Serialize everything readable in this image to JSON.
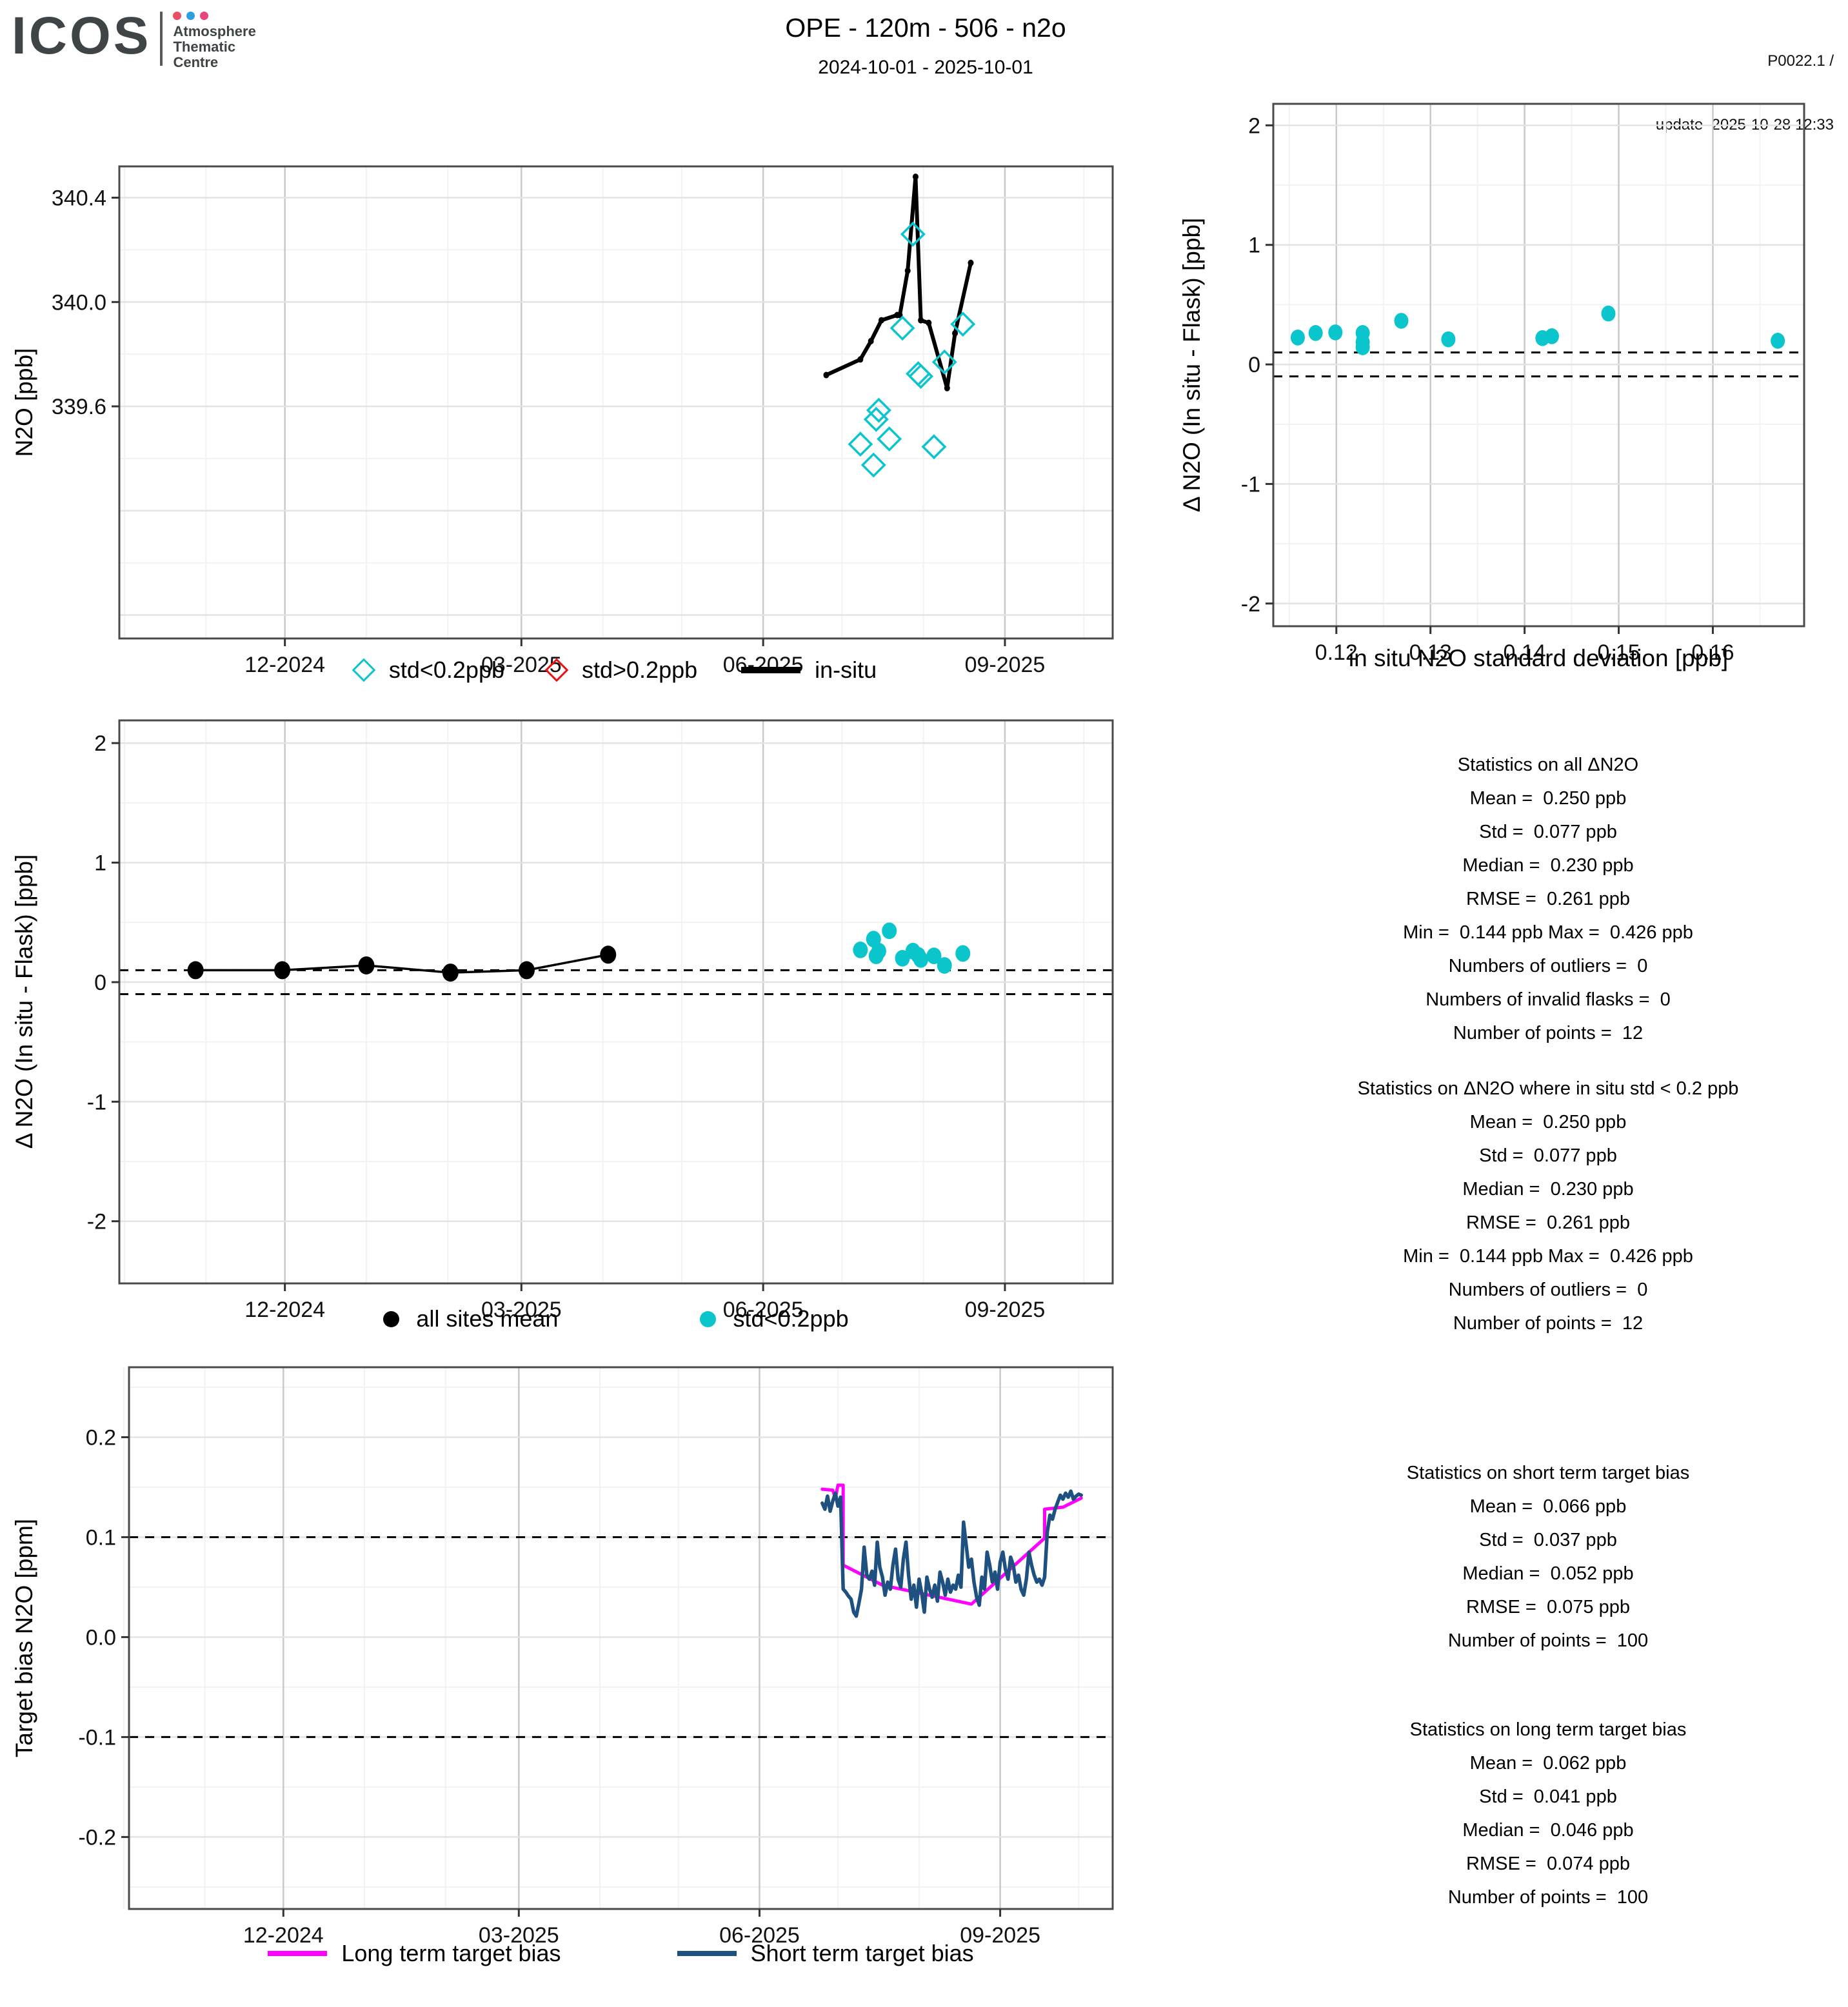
{
  "header": {
    "logo": {
      "brand": "ICOS",
      "dept_lines": [
        "Atmosphere",
        "Thematic",
        "Centre"
      ],
      "dot_colors": [
        "#ea4f63",
        "#2d9fdb",
        "#e9447e"
      ]
    },
    "title": "OPE - 120m - 506 - n2o",
    "subtitle": "2024-10-01 - 2025-10-01",
    "meta_line1": "P0022.1 /",
    "meta_line2": "update  2025-10-28 12:33"
  },
  "colors": {
    "cyan": "#0bc5cd",
    "red": "#ed1111",
    "black": "#000000",
    "magenta": "#ff00ff",
    "short_blue": "#1e5180",
    "frame": "#4a4a4a",
    "grid_major_v": "#c9c9c9",
    "grid_major_h": "#e3e3e3",
    "grid_minor": "#f2f2f2"
  },
  "chart_data": [
    {
      "id": "n2o_timeseries",
      "type": "line",
      "ylabel": "N2O [ppb]",
      "xlabel": "",
      "ylim": [
        338.71,
        340.52
      ],
      "x_ticks": [
        {
          "d": "2024-12-01",
          "label": "12-2024"
        },
        {
          "d": "2025-03-01",
          "label": "03-2025"
        },
        {
          "d": "2025-06-01",
          "label": "06-2025"
        },
        {
          "d": "2025-09-01",
          "label": "09-2025"
        }
      ],
      "x_minor": [
        "2024-10-01",
        "2024-11-01",
        "2025-01-01",
        "2025-02-01",
        "2025-04-01",
        "2025-05-01",
        "2025-07-01",
        "2025-08-01",
        "2025-10-01"
      ],
      "y_ticks": [
        {
          "v": 339.6,
          "label": "339.6"
        },
        {
          "v": 340.0,
          "label": "340.0"
        },
        {
          "v": 340.4,
          "label": "340.4"
        }
      ],
      "y_grid_major": [
        338.8,
        339.2,
        339.6,
        340.0,
        340.4
      ],
      "y_grid_minor": [
        339.0,
        339.4,
        339.8,
        340.2
      ],
      "dashed": [],
      "series": {
        "insitu": [
          [
            "2025-06-25",
            339.72
          ],
          [
            "2025-07-08",
            339.78
          ],
          [
            "2025-07-12",
            339.85
          ],
          [
            "2025-07-16",
            339.93
          ],
          [
            "2025-07-22",
            339.95
          ],
          [
            "2025-07-23",
            339.95
          ],
          [
            "2025-07-26",
            340.12
          ],
          [
            "2025-07-29",
            340.48
          ],
          [
            "2025-07-31",
            339.93
          ],
          [
            "2025-08-03",
            339.92
          ],
          [
            "2025-08-10",
            339.67
          ],
          [
            "2025-08-13",
            339.88
          ],
          [
            "2025-08-19",
            340.15
          ]
        ],
        "flask_std_ok": [
          [
            "2025-07-08",
            339.455
          ],
          [
            "2025-07-13",
            339.375
          ],
          [
            "2025-07-14",
            339.55
          ],
          [
            "2025-07-15",
            339.585
          ],
          [
            "2025-07-19",
            339.475
          ],
          [
            "2025-07-24",
            339.9
          ],
          [
            "2025-07-28",
            340.26
          ],
          [
            "2025-07-30",
            339.725
          ],
          [
            "2025-07-31",
            339.715
          ],
          [
            "2025-08-05",
            339.445
          ],
          [
            "2025-08-09",
            339.77
          ],
          [
            "2025-08-16",
            339.915
          ]
        ],
        "flask_std_bad": []
      },
      "legend": [
        {
          "label": "std<0.2ppb",
          "marker": "diamond",
          "color_key": "cyan"
        },
        {
          "label": "std>0.2ppb",
          "marker": "diamond",
          "color_key": "red"
        },
        {
          "label": "in-situ",
          "marker": "line",
          "color_key": "black"
        }
      ]
    },
    {
      "id": "delta_vs_std",
      "type": "scatter",
      "ylabel": "Δ N2O (In situ - Flask) [ppb]",
      "xlabel": "in situ N2O standard deviation [ppb]",
      "xlim": [
        0.1133,
        0.1697
      ],
      "ylim": [
        -2.19,
        2.18
      ],
      "x_ticks": [
        {
          "v": 0.12,
          "label": "0.12"
        },
        {
          "v": 0.13,
          "label": "0.13"
        },
        {
          "v": 0.14,
          "label": "0.14"
        },
        {
          "v": 0.15,
          "label": "0.15"
        },
        {
          "v": 0.16,
          "label": "0.16"
        }
      ],
      "x_minor": [
        0.115,
        0.125,
        0.135,
        0.145,
        0.155,
        0.165
      ],
      "y_ticks": [
        {
          "v": -2,
          "label": "-2"
        },
        {
          "v": -1,
          "label": "-1"
        },
        {
          "v": 0,
          "label": "0"
        },
        {
          "v": 1,
          "label": "1"
        },
        {
          "v": 2,
          "label": "2"
        }
      ],
      "y_grid_minor": [
        -1.5,
        -0.5,
        0.5,
        1.5
      ],
      "dashed": [
        0.1,
        -0.1
      ],
      "points": [
        [
          0.1159,
          0.225
        ],
        [
          0.1178,
          0.263
        ],
        [
          0.1199,
          0.268
        ],
        [
          0.1228,
          0.263
        ],
        [
          0.1228,
          0.187
        ],
        [
          0.1228,
          0.144
        ],
        [
          0.1269,
          0.365
        ],
        [
          0.1319,
          0.21
        ],
        [
          0.1419,
          0.22
        ],
        [
          0.1429,
          0.236
        ],
        [
          0.1489,
          0.426
        ],
        [
          0.1669,
          0.198
        ]
      ]
    },
    {
      "id": "delta_timeseries",
      "type": "scatter",
      "ylabel": "Δ N2O (In situ - Flask) [ppb]",
      "xlabel": "",
      "ylim": [
        -2.52,
        2.19
      ],
      "x_ticks": [
        {
          "d": "2024-12-01",
          "label": "12-2024"
        },
        {
          "d": "2025-03-01",
          "label": "03-2025"
        },
        {
          "d": "2025-06-01",
          "label": "06-2025"
        },
        {
          "d": "2025-09-01",
          "label": "09-2025"
        }
      ],
      "x_minor": [
        "2024-10-01",
        "2024-11-01",
        "2025-01-01",
        "2025-02-01",
        "2025-04-01",
        "2025-05-01",
        "2025-07-01",
        "2025-08-01",
        "2025-10-01"
      ],
      "y_ticks": [
        {
          "v": -2,
          "label": "-2"
        },
        {
          "v": -1,
          "label": "-1"
        },
        {
          "v": 0,
          "label": "0"
        },
        {
          "v": 1,
          "label": "1"
        },
        {
          "v": 2,
          "label": "2"
        }
      ],
      "y_grid_minor": [
        -1.5,
        -0.5,
        0.5,
        1.5
      ],
      "dashed": [
        0.1,
        -0.1
      ],
      "series": {
        "all_sites_mean": [
          [
            "2024-10-28",
            0.1
          ],
          [
            "2024-11-30",
            0.1
          ],
          [
            "2025-01-01",
            0.14
          ],
          [
            "2025-02-02",
            0.08
          ],
          [
            "2025-03-03",
            0.1
          ],
          [
            "2025-04-03",
            0.23
          ]
        ],
        "flask_std_ok": [
          [
            "2025-07-08",
            0.27
          ],
          [
            "2025-07-13",
            0.36
          ],
          [
            "2025-07-14",
            0.22
          ],
          [
            "2025-07-15",
            0.26
          ],
          [
            "2025-07-19",
            0.43
          ],
          [
            "2025-07-24",
            0.2
          ],
          [
            "2025-07-28",
            0.26
          ],
          [
            "2025-07-30",
            0.225
          ],
          [
            "2025-07-31",
            0.19
          ],
          [
            "2025-08-05",
            0.22
          ],
          [
            "2025-08-09",
            0.14
          ],
          [
            "2025-08-16",
            0.24
          ]
        ]
      },
      "legend": [
        {
          "label": "all sites mean",
          "marker": "dot",
          "color_key": "black"
        },
        {
          "label": "std<0.2ppb",
          "marker": "dot",
          "color_key": "cyan"
        }
      ]
    },
    {
      "id": "target_bias",
      "type": "line",
      "ylabel": "Target bias N2O [ppm]",
      "xlabel": "",
      "ylim": [
        -0.272,
        0.27
      ],
      "x_ticks": [
        {
          "d": "2024-12-01",
          "label": "12-2024"
        },
        {
          "d": "2025-03-01",
          "label": "03-2025"
        },
        {
          "d": "2025-06-01",
          "label": "06-2025"
        },
        {
          "d": "2025-09-01",
          "label": "09-2025"
        }
      ],
      "x_minor": [
        "2024-10-01",
        "2024-11-01",
        "2025-01-01",
        "2025-02-01",
        "2025-04-01",
        "2025-05-01",
        "2025-07-01",
        "2025-08-01",
        "2025-10-01"
      ],
      "y_ticks": [
        {
          "v": 0.2,
          "label": "0.2"
        },
        {
          "v": 0.1,
          "label": "0.1"
        },
        {
          "v": 0.0,
          "label": "0.0"
        },
        {
          "v": -0.1,
          "label": "-0.1"
        },
        {
          "v": -0.2,
          "label": "-0.2"
        }
      ],
      "y_grid_minor": [
        0.25,
        0.15,
        0.05,
        -0.05,
        -0.15,
        -0.25
      ],
      "dashed": [
        0.1,
        -0.1
      ],
      "series": {
        "long_term": [
          [
            "2025-06-25",
            0.148
          ],
          [
            "2025-06-29",
            0.147
          ],
          [
            "2025-06-30",
            0.139
          ],
          [
            "2025-07-01",
            0.152
          ],
          [
            "2025-07-03",
            0.152
          ],
          [
            "2025-07-03",
            0.072
          ],
          [
            "2025-07-18",
            0.052
          ],
          [
            "2025-08-21",
            0.033
          ],
          [
            "2025-09-18",
            0.099
          ],
          [
            "2025-09-18",
            0.128
          ],
          [
            "2025-09-25",
            0.13
          ],
          [
            "2025-10-02",
            0.139
          ]
        ],
        "short_term": {
          "start": "2025-06-25",
          "step_days": 1,
          "values": [
            0.134,
            0.128,
            0.141,
            0.126,
            0.136,
            0.144,
            0.131,
            0.14,
            0.048,
            0.045,
            0.041,
            0.038,
            0.025,
            0.021,
            0.034,
            0.048,
            0.09,
            0.062,
            0.058,
            0.066,
            0.052,
            0.095,
            0.07,
            0.06,
            0.042,
            0.055,
            0.048,
            0.072,
            0.088,
            0.058,
            0.05,
            0.078,
            0.095,
            0.062,
            0.038,
            0.052,
            0.03,
            0.058,
            0.044,
            0.025,
            0.06,
            0.048,
            0.04,
            0.052,
            0.036,
            0.065,
            0.055,
            0.042,
            0.058,
            0.045,
            0.052,
            0.048,
            0.062,
            0.05,
            0.115,
            0.092,
            0.07,
            0.078,
            0.055,
            0.04,
            0.032,
            0.06,
            0.048,
            0.085,
            0.072,
            0.055,
            0.065,
            0.048,
            0.075,
            0.085,
            0.068,
            0.058,
            0.08,
            0.072,
            0.055,
            0.062,
            0.048,
            0.042,
            0.058,
            0.085,
            0.072,
            0.062,
            0.055,
            0.058,
            0.052,
            0.06,
            0.105,
            0.122,
            0.118,
            0.128,
            0.135,
            0.142,
            0.138,
            0.144,
            0.14,
            0.146,
            0.138,
            0.141,
            0.143,
            0.142
          ]
        }
      },
      "legend": [
        {
          "label": "Long term target bias",
          "marker": "line",
          "color_key": "magenta"
        },
        {
          "label": "Short term target bias",
          "marker": "line",
          "color_key": "short_blue"
        }
      ]
    }
  ],
  "stats": {
    "block1": {
      "lines": [
        "Statistics on all ΔN2O",
        "Mean =  0.250 ppb",
        "Std =  0.077 ppb",
        "Median =  0.230 ppb",
        "RMSE =  0.261 ppb",
        "Min =  0.144 ppb Max =  0.426 ppb",
        "Numbers of outliers =  0",
        "Numbers of invalid flasks =  0",
        "Number of points =  12"
      ]
    },
    "block2": {
      "lines": [
        "Statistics on ΔN2O where in situ std < 0.2 ppb",
        "Mean =  0.250 ppb",
        "Std =  0.077 ppb",
        "Median =  0.230 ppb",
        "RMSE =  0.261 ppb",
        "Min =  0.144 ppb Max =  0.426 ppb",
        "Numbers of outliers =  0",
        "Number of points =  12"
      ]
    },
    "block3": {
      "lines": [
        "Statistics on short term target bias",
        "Mean =  0.066 ppb",
        "Std =  0.037 ppb",
        "Median =  0.052 ppb",
        "RMSE =  0.075 ppb",
        "Number of points =  100"
      ]
    },
    "block4": {
      "lines": [
        "Statistics on long term target bias",
        "Mean =  0.062 ppb",
        "Std =  0.041 ppb",
        "Median =  0.046 ppb",
        "RMSE =  0.074 ppb",
        "Number of points =  100"
      ]
    }
  }
}
